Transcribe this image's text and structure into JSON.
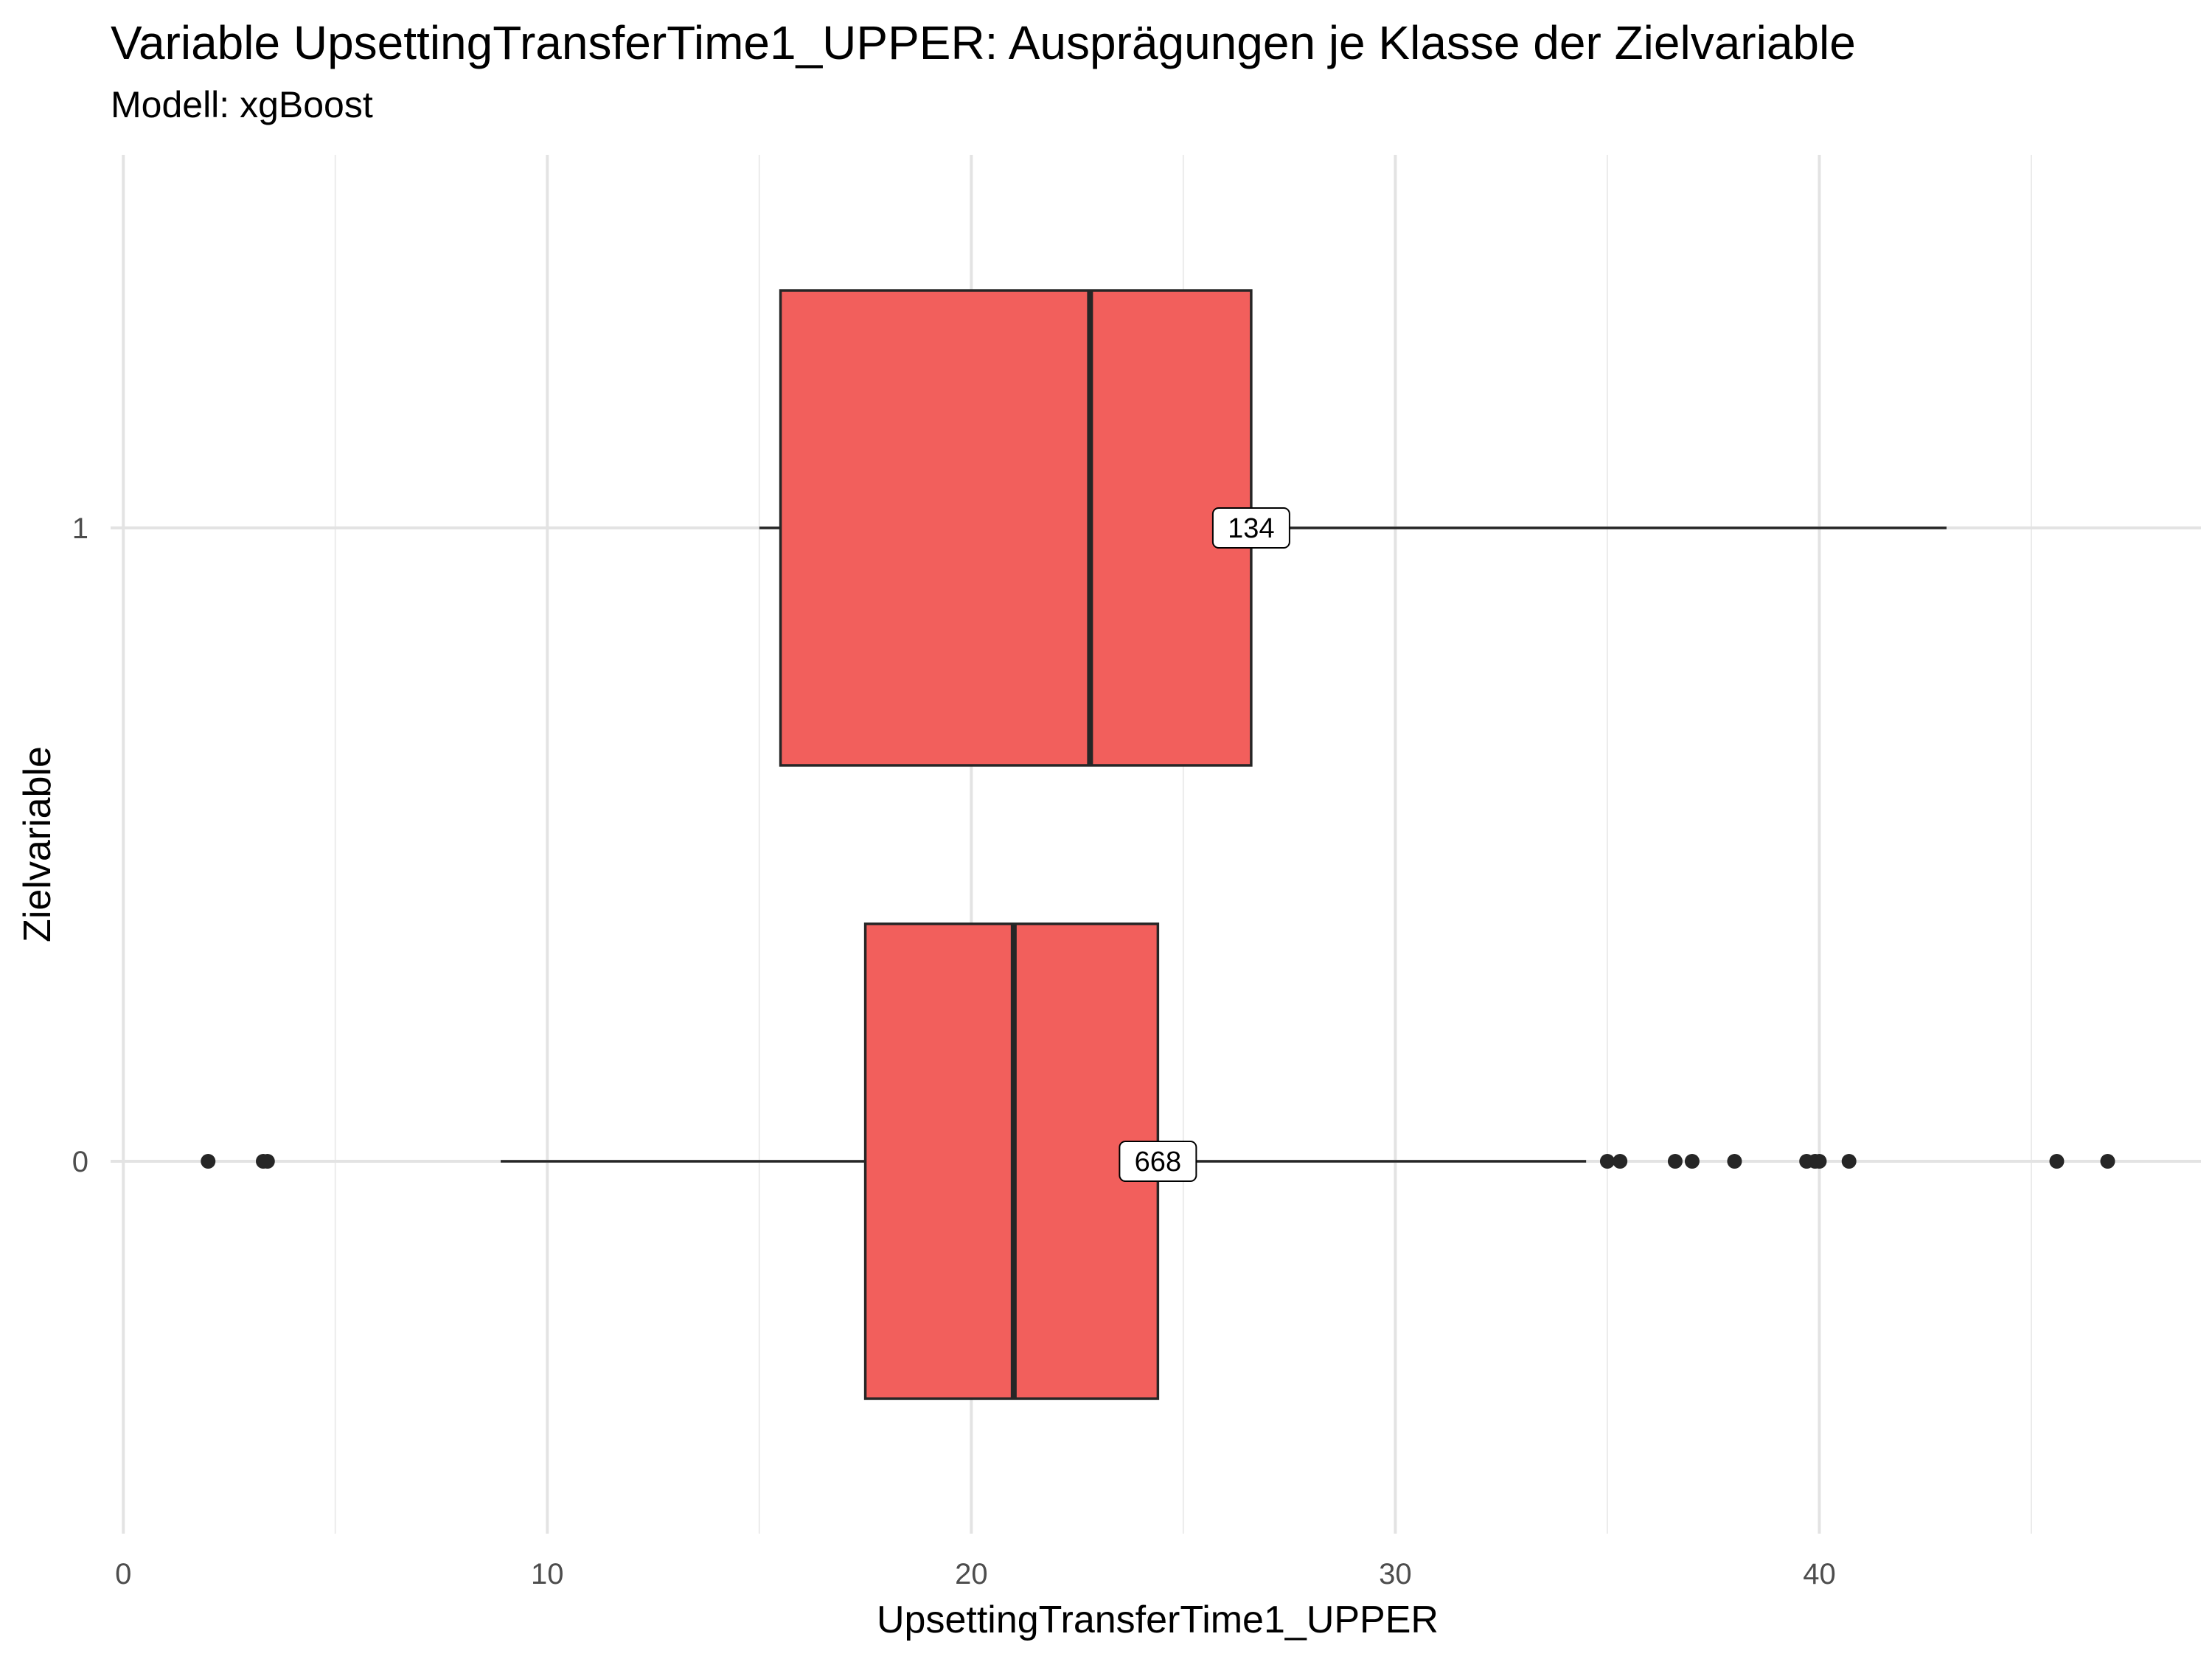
{
  "chart_data": {
    "type": "boxplot",
    "orientation": "horizontal",
    "title": "Variable UpsettingTransferTime1_UPPER: Ausprägungen je Klasse der Zielvariable",
    "subtitle": "Modell: xgBoost",
    "xlabel": "UpsettingTransferTime1_UPPER",
    "ylabel": "Zielvariable",
    "xlim": [
      -0.3,
      49
    ],
    "x_ticks": [
      0,
      10,
      20,
      30,
      40
    ],
    "x_minor_ticks": [
      5,
      15,
      25,
      35,
      45
    ],
    "categories": [
      "0",
      "1"
    ],
    "grid": true,
    "box_fill": "#f25f5c",
    "box_stroke": "#262626",
    "boxes": [
      {
        "category": "0",
        "min": 8.9,
        "q1": 17.5,
        "median": 21.0,
        "q3": 24.4,
        "max": 34.5,
        "count_label": "668",
        "count_label_x": 24.4,
        "outliers": [
          2.0,
          3.3,
          3.4,
          35.0,
          35.3,
          36.6,
          37.0,
          38.0,
          39.7,
          39.9,
          40.0,
          40.7,
          45.6,
          46.8
        ]
      },
      {
        "category": "1",
        "min": 15.0,
        "q1": 15.5,
        "median": 22.8,
        "q3": 26.6,
        "max": 43.0,
        "count_label": "134",
        "count_label_x": 26.6,
        "outliers": []
      }
    ]
  }
}
